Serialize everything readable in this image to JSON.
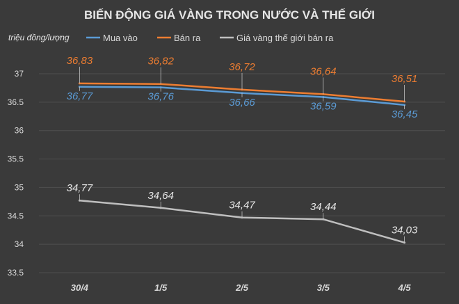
{
  "chart_data": {
    "type": "line",
    "title": "BIẾN ĐỘNG GIÁ VÀNG TRONG NƯỚC VÀ THẾ GIỚI",
    "ylabel": "triệu đồng/lượng",
    "xlabel": "",
    "categories": [
      "30/4",
      "1/5",
      "2/5",
      "3/5",
      "4/5"
    ],
    "ylim": [
      33.5,
      37
    ],
    "yticks": [
      "33.5",
      "34",
      "34.5",
      "35",
      "35.5",
      "36",
      "36.5",
      "37"
    ],
    "grid": true,
    "legend": "top",
    "series": [
      {
        "name": "Mua vào",
        "color": "#5b9bd5",
        "values": [
          36.77,
          36.76,
          36.66,
          36.59,
          36.45
        ],
        "labels": [
          "36,77",
          "36,76",
          "36,66",
          "36,59",
          "36,45"
        ]
      },
      {
        "name": "Bán ra",
        "color": "#ed7d31",
        "values": [
          36.83,
          36.82,
          36.72,
          36.64,
          36.51
        ],
        "labels": [
          "36,83",
          "36,82",
          "36,72",
          "36,64",
          "36,51"
        ]
      },
      {
        "name": "Giá vàng thế giới bán ra",
        "color": "#bfbfbf",
        "values": [
          34.77,
          34.64,
          34.47,
          34.44,
          34.03
        ],
        "labels": [
          "34,77",
          "34,64",
          "34,47",
          "34,44",
          "34,03"
        ]
      }
    ]
  }
}
